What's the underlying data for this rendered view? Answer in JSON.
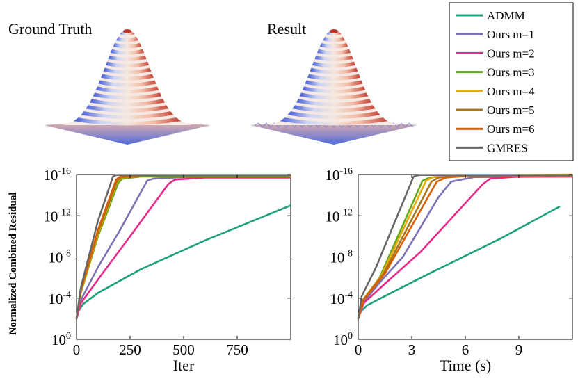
{
  "panels": {
    "ground_truth": {
      "title": "Ground Truth"
    },
    "result": {
      "title": "Result"
    }
  },
  "legend": {
    "entries": [
      {
        "name": "ADMM",
        "color": "#1fa07c"
      },
      {
        "name": "Ours m=1",
        "color": "#7b72b5"
      },
      {
        "name": "Ours m=2",
        "color": "#e7298a"
      },
      {
        "name": "Ours m=3",
        "color": "#66a61e"
      },
      {
        "name": "Ours m=4",
        "color": "#e6ab02"
      },
      {
        "name": "Ours m=5",
        "color": "#a6761d"
      },
      {
        "name": "Ours m=6",
        "color": "#d95f02"
      },
      {
        "name": "GMRES",
        "color": "#666666"
      }
    ]
  },
  "chart_data": [
    {
      "type": "line",
      "title": "",
      "xlabel": "Iter",
      "ylabel": "Normalized Combined Residual",
      "yscale": "log",
      "xlim": [
        0,
        1000
      ],
      "ylim_log10": [
        -16,
        0
      ],
      "xticks": [
        0,
        250,
        500,
        750
      ],
      "xtick_labels": [
        "0",
        "250",
        "500",
        "750"
      ],
      "yticks_log10": [
        0,
        -4,
        -8,
        -12,
        -16
      ],
      "ytick_bases": [
        "10",
        "10",
        "10",
        "10",
        "10"
      ],
      "ytick_exponents": [
        "0",
        "-4",
        "-8",
        "-12",
        "-16"
      ],
      "series": [
        {
          "name": "ADMM",
          "color": "#1fa07c",
          "x": [
            0,
            5,
            30,
            100,
            300,
            600,
            1000
          ],
          "log10y": [
            -2.0,
            -2.6,
            -3.4,
            -4.5,
            -6.8,
            -9.6,
            -13.0
          ]
        },
        {
          "name": "Ours m=1",
          "color": "#7b72b5",
          "x": [
            0,
            20,
            100,
            200,
            330,
            360,
            500,
            1000
          ],
          "log10y": [
            -2.0,
            -3.8,
            -7.0,
            -10.5,
            -15.4,
            -15.6,
            -15.75,
            -15.75
          ]
        },
        {
          "name": "Ours m=2",
          "color": "#e7298a",
          "x": [
            0,
            20,
            100,
            250,
            430,
            460,
            600,
            1000
          ],
          "log10y": [
            -2.0,
            -3.5,
            -5.8,
            -10.0,
            -15.1,
            -15.5,
            -15.7,
            -15.7
          ]
        },
        {
          "name": "Ours m=3",
          "color": "#66a61e",
          "x": [
            0,
            20,
            100,
            195,
            215,
            300,
            1000
          ],
          "log10y": [
            -2.0,
            -4.5,
            -10.0,
            -15.2,
            -15.6,
            -15.8,
            -15.8
          ]
        },
        {
          "name": "Ours m=4",
          "color": "#e6ab02",
          "x": [
            0,
            20,
            100,
            190,
            210,
            300,
            1000
          ],
          "log10y": [
            -2.0,
            -4.6,
            -10.2,
            -15.3,
            -15.7,
            -15.85,
            -15.85
          ]
        },
        {
          "name": "Ours m=5",
          "color": "#a6761d",
          "x": [
            0,
            20,
            100,
            190,
            210,
            300,
            1000
          ],
          "log10y": [
            -2.0,
            -4.7,
            -10.4,
            -15.4,
            -15.75,
            -15.85,
            -15.85
          ]
        },
        {
          "name": "Ours m=6",
          "color": "#d95f02",
          "x": [
            0,
            20,
            100,
            185,
            205,
            300,
            1000
          ],
          "log10y": [
            -2.0,
            -4.8,
            -10.6,
            -15.5,
            -15.8,
            -15.9,
            -15.9
          ]
        },
        {
          "name": "GMRES",
          "color": "#666666",
          "x": [
            0,
            20,
            100,
            170,
            185,
            300,
            1000
          ],
          "log10y": [
            -2.0,
            -5.0,
            -11.5,
            -15.8,
            -15.95,
            -15.95,
            -15.95
          ]
        }
      ]
    },
    {
      "type": "line",
      "title": "",
      "xlabel": "Time (s)",
      "ylabel": "",
      "yscale": "log",
      "xlim": [
        0,
        12
      ],
      "ylim_log10": [
        -16,
        0
      ],
      "xticks": [
        0,
        3,
        6,
        9
      ],
      "xtick_labels": [
        "0",
        "3",
        "6",
        "9"
      ],
      "yticks_log10": [
        0,
        -4,
        -8,
        -12,
        -16
      ],
      "ytick_bases": [
        "10",
        "10",
        "10",
        "10",
        "10"
      ],
      "ytick_exponents": [
        "0",
        "-4",
        "-8",
        "-12",
        "-16"
      ],
      "series": [
        {
          "name": "ADMM",
          "color": "#1fa07c",
          "x": [
            0,
            0.1,
            0.5,
            1.5,
            4,
            8,
            11.3
          ],
          "log10y": [
            -2.0,
            -2.6,
            -3.3,
            -4.2,
            -6.4,
            -9.8,
            -12.9
          ]
        },
        {
          "name": "Ours m=1",
          "color": "#7b72b5",
          "x": [
            0,
            0.3,
            1.2,
            2.5,
            4.5,
            5.2,
            6.5,
            12
          ],
          "log10y": [
            -2.0,
            -3.6,
            -5.5,
            -8.0,
            -13.8,
            -15.3,
            -15.75,
            -15.8
          ]
        },
        {
          "name": "Ours m=2",
          "color": "#e7298a",
          "x": [
            0,
            0.3,
            1.5,
            3.5,
            7.0,
            7.4,
            9.0,
            12
          ],
          "log10y": [
            -2.0,
            -3.5,
            -5.4,
            -8.5,
            -15.1,
            -15.6,
            -15.8,
            -15.8
          ]
        },
        {
          "name": "Ours m=3",
          "color": "#66a61e",
          "x": [
            0,
            0.3,
            1.2,
            3.6,
            4.0,
            5.0,
            12
          ],
          "log10y": [
            -2.0,
            -3.8,
            -6.0,
            -15.4,
            -15.7,
            -15.85,
            -15.9
          ]
        },
        {
          "name": "Ours m=4",
          "color": "#e6ab02",
          "x": [
            0,
            0.3,
            1.3,
            3.8,
            4.2,
            5.2,
            12
          ],
          "log10y": [
            -2.0,
            -3.9,
            -6.2,
            -15.4,
            -15.75,
            -15.9,
            -16.0
          ]
        },
        {
          "name": "Ours m=5",
          "color": "#a6761d",
          "x": [
            0,
            0.3,
            1.4,
            4.1,
            4.5,
            5.5,
            12
          ],
          "log10y": [
            -2.0,
            -3.9,
            -6.3,
            -15.3,
            -15.7,
            -15.85,
            -15.9
          ]
        },
        {
          "name": "Ours m=6",
          "color": "#d95f02",
          "x": [
            0,
            0.3,
            1.5,
            4.4,
            4.9,
            6.0,
            12
          ],
          "log10y": [
            -2.0,
            -3.8,
            -6.4,
            -15.3,
            -15.7,
            -15.85,
            -15.85
          ]
        },
        {
          "name": "GMRES",
          "color": "#666666",
          "x": [
            0,
            0.2,
            1.0,
            3.1,
            3.4,
            4.5,
            12
          ],
          "log10y": [
            -2.0,
            -4.2,
            -7.0,
            -15.8,
            -15.95,
            -15.95,
            -15.95
          ]
        }
      ]
    }
  ]
}
